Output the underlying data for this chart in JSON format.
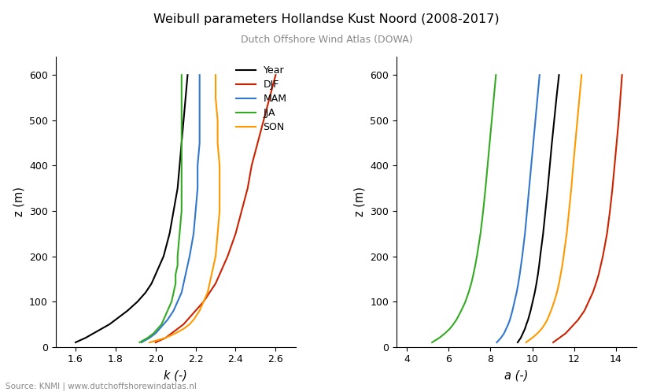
{
  "title": "Weibull parameters Hollandse Kust Noord (2008-2017)",
  "subtitle": "Dutch Offshore Wind Atlas (DOWA)",
  "source": "Source: KNMI | www.dutchoffshorewindatlas.nl",
  "xlabel_k": "k (-)",
  "xlabel_a": "a (-)",
  "ylabel": "z (m)",
  "ylim": [
    0,
    640
  ],
  "yticks": [
    0,
    100,
    200,
    300,
    400,
    500,
    600
  ],
  "xlim_k": [
    1.5,
    2.7
  ],
  "xticks_k": [
    1.6,
    1.8,
    2.0,
    2.2,
    2.4,
    2.6
  ],
  "xlim_a": [
    3.5,
    15.0
  ],
  "xticks_a": [
    4,
    6,
    8,
    10,
    12,
    14
  ],
  "legend_labels": [
    "Year",
    "DJF",
    "MAM",
    "JJA",
    "SON"
  ],
  "colors": [
    "black",
    "#cc2200",
    "#3377cc",
    "#33aa22",
    "#ff9900"
  ],
  "z": [
    10,
    20,
    30,
    40,
    50,
    60,
    80,
    100,
    120,
    140,
    160,
    180,
    200,
    250,
    300,
    350,
    400,
    450,
    500,
    550,
    600
  ],
  "k_year": [
    1.6,
    1.65,
    1.69,
    1.73,
    1.77,
    1.8,
    1.86,
    1.91,
    1.95,
    1.98,
    2.0,
    2.02,
    2.04,
    2.07,
    2.09,
    2.11,
    2.12,
    2.13,
    2.14,
    2.15,
    2.16
  ],
  "k_DJF": [
    2.0,
    2.05,
    2.08,
    2.11,
    2.14,
    2.16,
    2.2,
    2.24,
    2.27,
    2.3,
    2.32,
    2.34,
    2.36,
    2.4,
    2.43,
    2.46,
    2.48,
    2.51,
    2.54,
    2.57,
    2.6
  ],
  "k_MAM": [
    1.93,
    1.97,
    2.0,
    2.02,
    2.04,
    2.06,
    2.09,
    2.11,
    2.13,
    2.14,
    2.15,
    2.16,
    2.17,
    2.19,
    2.2,
    2.21,
    2.21,
    2.22,
    2.22,
    2.22,
    2.22
  ],
  "k_JJA": [
    1.92,
    1.96,
    1.99,
    2.01,
    2.03,
    2.04,
    2.06,
    2.08,
    2.09,
    2.1,
    2.1,
    2.11,
    2.11,
    2.12,
    2.13,
    2.13,
    2.13,
    2.13,
    2.13,
    2.13,
    2.13
  ],
  "k_SON": [
    1.97,
    2.05,
    2.1,
    2.14,
    2.17,
    2.19,
    2.22,
    2.24,
    2.26,
    2.27,
    2.28,
    2.29,
    2.3,
    2.31,
    2.32,
    2.32,
    2.32,
    2.31,
    2.31,
    2.3,
    2.3
  ],
  "a_year": [
    9.3,
    9.45,
    9.55,
    9.65,
    9.72,
    9.8,
    9.92,
    10.02,
    10.12,
    10.2,
    10.27,
    10.33,
    10.38,
    10.52,
    10.63,
    10.74,
    10.84,
    10.94,
    11.05,
    11.16,
    11.28
  ],
  "a_DJF": [
    11.0,
    11.3,
    11.6,
    11.8,
    12.0,
    12.2,
    12.5,
    12.7,
    12.9,
    13.05,
    13.18,
    13.28,
    13.38,
    13.58,
    13.72,
    13.84,
    13.94,
    14.04,
    14.14,
    14.22,
    14.3
  ],
  "a_MAM": [
    8.3,
    8.5,
    8.65,
    8.75,
    8.85,
    8.93,
    9.05,
    9.15,
    9.25,
    9.33,
    9.4,
    9.46,
    9.52,
    9.65,
    9.75,
    9.85,
    9.95,
    10.05,
    10.15,
    10.25,
    10.35
  ],
  "a_JJA": [
    5.2,
    5.55,
    5.82,
    6.05,
    6.22,
    6.37,
    6.6,
    6.8,
    6.95,
    7.08,
    7.18,
    7.27,
    7.35,
    7.52,
    7.65,
    7.76,
    7.86,
    7.96,
    8.06,
    8.16,
    8.26
  ],
  "a_SON": [
    9.7,
    10.0,
    10.25,
    10.45,
    10.6,
    10.72,
    10.9,
    11.05,
    11.18,
    11.28,
    11.36,
    11.44,
    11.5,
    11.65,
    11.76,
    11.87,
    11.96,
    12.06,
    12.16,
    12.26,
    12.36
  ]
}
